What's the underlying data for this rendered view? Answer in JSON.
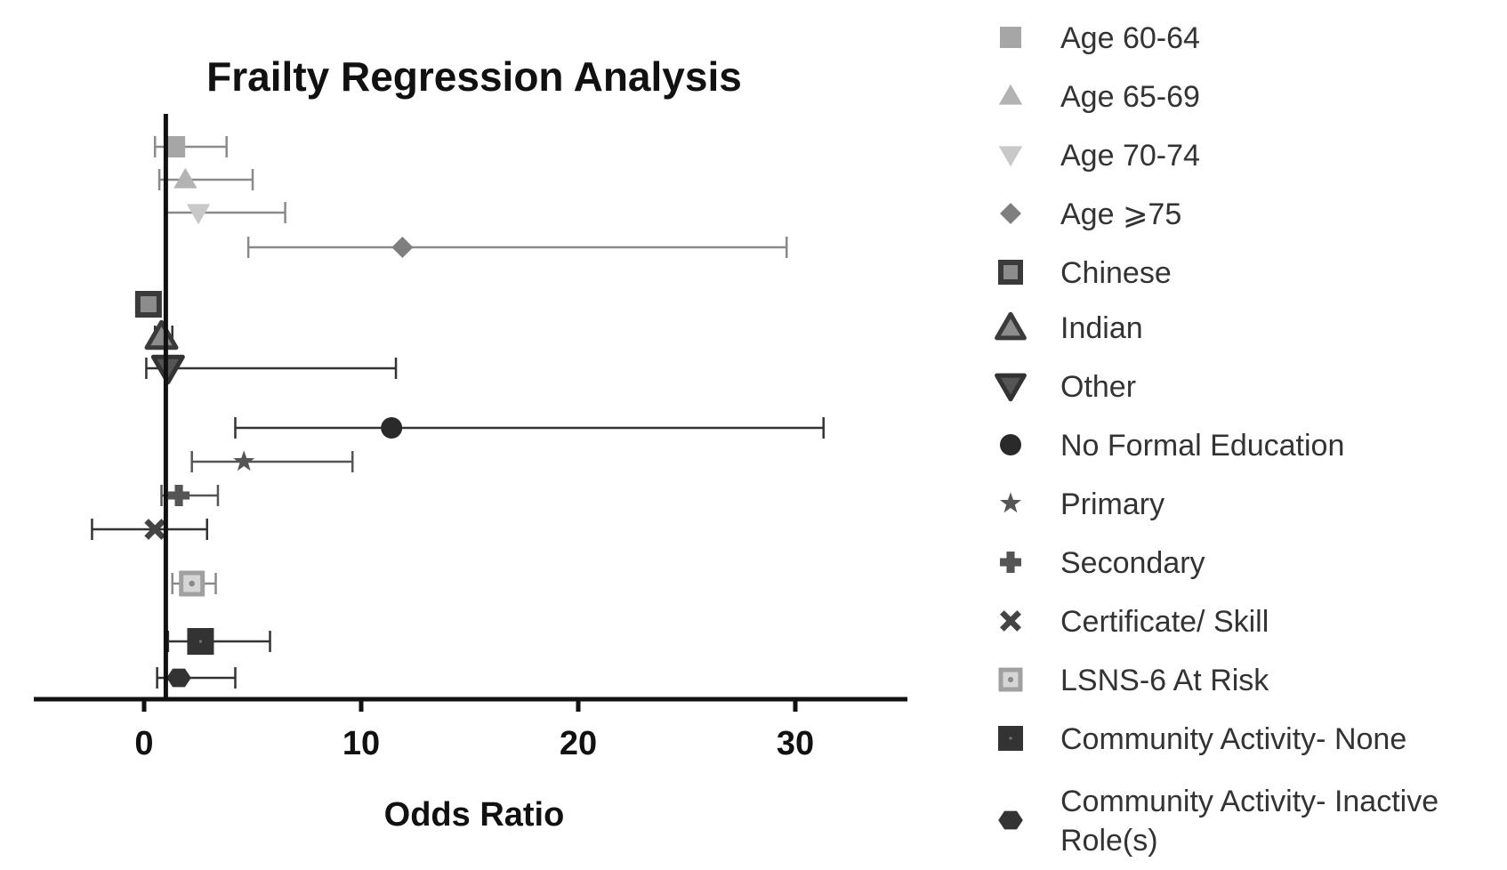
{
  "chart_data": {
    "type": "forest",
    "title": "Frailty Regression Analysis",
    "xlabel": "Odds Ratio",
    "xlim": [
      -5,
      35
    ],
    "xticks": [
      0,
      10,
      20,
      30
    ],
    "xtick_labels": [
      "0",
      "10",
      "20",
      "30"
    ],
    "reference_line": 1,
    "legend_position": "right",
    "series": [
      {
        "name": "Age 60-64",
        "or": 1.4,
        "lo": 0.5,
        "hi": 3.8,
        "marker": "square",
        "color": "#a6a6a6",
        "style": "light"
      },
      {
        "name": "Age 65-69",
        "or": 1.9,
        "lo": 0.7,
        "hi": 5.0,
        "marker": "triangle-up",
        "color": "#b3b3b3",
        "style": "light"
      },
      {
        "name": "Age 70-74",
        "or": 2.5,
        "lo": 1.0,
        "hi": 6.5,
        "marker": "triangle-down",
        "color": "#c8c8c8",
        "style": "light"
      },
      {
        "name": "Age ≥75",
        "legend_label": "Age ⩾75",
        "or": 11.9,
        "lo": 4.8,
        "hi": 29.6,
        "marker": "diamond",
        "color": "#7f7f7f",
        "style": "light"
      },
      {
        "name": "Chinese",
        "or": 0.2,
        "lo": null,
        "hi": null,
        "marker": "square-outline",
        "color": "#3a3a3a",
        "fill": "#8c8c8c",
        "style": "outline"
      },
      {
        "name": "Indian",
        "or": 0.8,
        "lo": 0.5,
        "hi": 1.3,
        "marker": "triangle-up-outline",
        "color": "#3a3a3a",
        "fill": "#8c8c8c",
        "style": "outline"
      },
      {
        "name": "Other",
        "or": 1.1,
        "lo": 0.1,
        "hi": 11.6,
        "marker": "triangle-down-outline",
        "color": "#333333",
        "fill": "#555555",
        "style": "outline"
      },
      {
        "name": "No Formal Education",
        "or": 11.4,
        "lo": 4.2,
        "hi": 31.3,
        "marker": "circle",
        "color": "#2a2a2a",
        "style": "dark"
      },
      {
        "name": "Primary",
        "or": 4.6,
        "lo": 2.2,
        "hi": 9.6,
        "marker": "star",
        "color": "#555555",
        "style": "mid"
      },
      {
        "name": "Secondary",
        "or": 1.6,
        "lo": 0.8,
        "hi": 3.4,
        "marker": "plus",
        "color": "#555555",
        "style": "mid"
      },
      {
        "name": "Certificate/ Skill",
        "or": 0.5,
        "lo": -2.4,
        "hi": 2.9,
        "marker": "cross",
        "color": "#444444",
        "style": "dark"
      },
      {
        "name": "LSNS-6 At Risk",
        "or": 2.2,
        "lo": 1.3,
        "hi": 3.3,
        "marker": "square-dot",
        "color": "#a0a0a0",
        "style": "light"
      },
      {
        "name": "Community Activity- None",
        "or": 2.6,
        "lo": 1.1,
        "hi": 5.8,
        "marker": "square-dark",
        "color": "#333333",
        "style": "dark"
      },
      {
        "name": "Community Activity- Inactive Role(s)",
        "legend_lines": [
          "Community Activity- Inactive",
          "Role(s)"
        ],
        "or": 1.6,
        "lo": 0.6,
        "hi": 4.2,
        "marker": "hexagon",
        "color": "#333333",
        "style": "dark"
      }
    ]
  }
}
